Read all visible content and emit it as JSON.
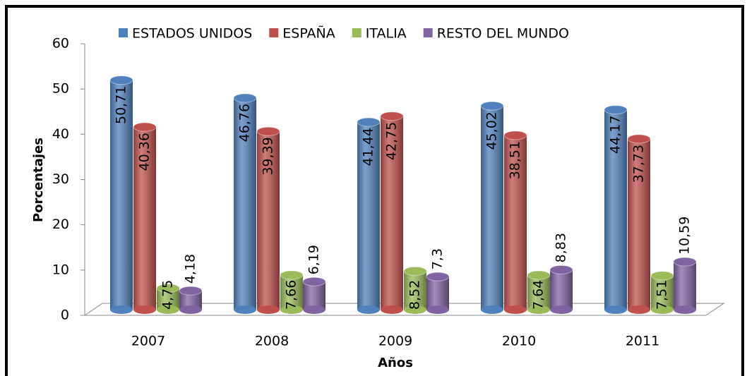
{
  "chart_data": {
    "type": "bar",
    "categories": [
      "2007",
      "2008",
      "2009",
      "2010",
      "2011"
    ],
    "series": [
      {
        "name": "ESTADOS UNIDOS",
        "color": "#4f81bd",
        "values": [
          50.71,
          46.76,
          41.44,
          45.02,
          44.17
        ],
        "value_labels": [
          "50,71",
          "46,76",
          "41,44",
          "45,02",
          "44,17"
        ]
      },
      {
        "name": "ESPAÑA",
        "color": "#c0504d",
        "values": [
          40.36,
          39.39,
          42.75,
          38.51,
          37.73
        ],
        "value_labels": [
          "40,36",
          "39,39",
          "42,75",
          "38,51",
          "37,73"
        ]
      },
      {
        "name": "ITALIA",
        "color": "#9bbb59",
        "values": [
          4.75,
          7.66,
          8.52,
          7.64,
          7.51
        ],
        "value_labels": [
          "4,75",
          "7,66",
          "8,52",
          "7,64",
          "7,51"
        ]
      },
      {
        "name": "RESTO DEL MUNDO",
        "color": "#8064a2",
        "values": [
          4.18,
          6.19,
          7.3,
          8.83,
          10.59
        ],
        "value_labels": [
          "4,18",
          "6,19",
          "7,3",
          "8,83",
          "10,59"
        ]
      }
    ],
    "xlabel": "Años",
    "ylabel": "Porcentajes",
    "ylim": [
      0,
      60
    ],
    "yticks": [
      0,
      10,
      20,
      30,
      40,
      50,
      60
    ],
    "legend": "top"
  }
}
